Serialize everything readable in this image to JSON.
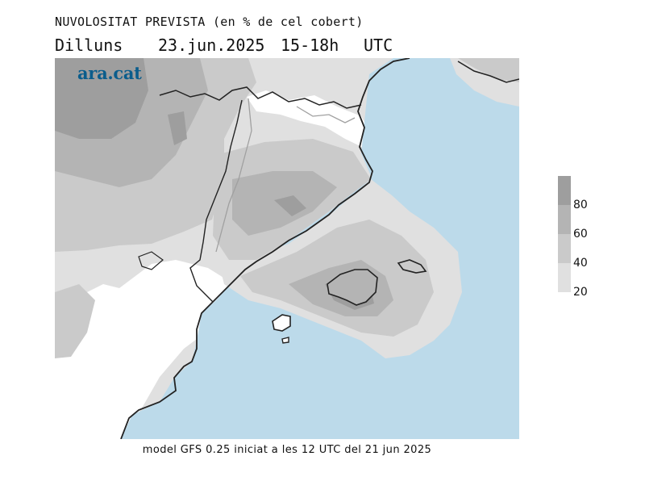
{
  "map": {
    "title": "NUVOLOSITAT PREVISTA (en % de cel cobert)",
    "day": "Dilluns",
    "date": "23.jun.2025",
    "time_range": "15-18h",
    "timezone": "UTC",
    "brand": "ara.cat",
    "footer": "model GFS 0.25 iniciat a les 12 UTC del 21 jun 2025",
    "colors": {
      "sea": "#bcdaea",
      "cloud_20": "#e0e0e0",
      "cloud_40": "#cacaca",
      "cloud_60": "#b4b4b4",
      "cloud_80": "#9e9e9e",
      "coastline": "#222222",
      "border": "#a0a0a0"
    },
    "legend": {
      "ticks": [
        "80",
        "60",
        "40",
        "20"
      ],
      "levels": [
        {
          "min": 80,
          "color": "#9e9e9e"
        },
        {
          "min": 60,
          "color": "#b4b4b4"
        },
        {
          "min": 40,
          "color": "#cacaca"
        },
        {
          "min": 20,
          "color": "#e0e0e0"
        }
      ]
    }
  }
}
